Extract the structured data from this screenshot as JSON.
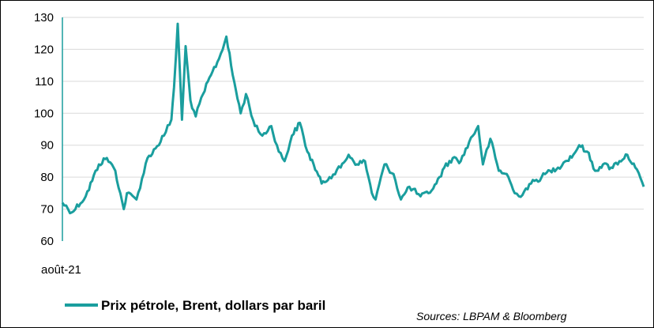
{
  "chart_data": {
    "type": "line",
    "title": "",
    "xlabel": "",
    "ylabel": "",
    "x_tick_labels": [
      "août-21"
    ],
    "y_ticks": [
      60,
      70,
      80,
      90,
      100,
      110,
      120,
      130
    ],
    "ylim": [
      60,
      130
    ],
    "grid": "horizontal",
    "legend_position": "bottom-left",
    "series": [
      {
        "name": "Prix pétrole, Brent, dollars par baril",
        "color": "#1a9e9e",
        "x": [
          "2021-08-02",
          "2021-08-20",
          "2021-09-15",
          "2021-10-10",
          "2021-10-25",
          "2021-11-10",
          "2021-11-26",
          "2021-12-02",
          "2021-12-20",
          "2022-01-10",
          "2022-01-25",
          "2022-02-10",
          "2022-02-24",
          "2022-03-01",
          "2022-03-08",
          "2022-03-16",
          "2022-03-23",
          "2022-04-01",
          "2022-04-11",
          "2022-04-25",
          "2022-05-10",
          "2022-05-25",
          "2022-06-08",
          "2022-06-20",
          "2022-07-05",
          "2022-07-15",
          "2022-08-01",
          "2022-08-15",
          "2022-09-01",
          "2022-09-15",
          "2022-09-26",
          "2022-10-10",
          "2022-10-25",
          "2022-11-08",
          "2022-11-20",
          "2022-12-05",
          "2022-12-20",
          "2023-01-10",
          "2023-01-25",
          "2023-02-10",
          "2023-02-25",
          "2023-03-10",
          "2023-03-17",
          "2023-04-03",
          "2023-04-20",
          "2023-05-04",
          "2023-05-20",
          "2023-06-10",
          "2023-06-25",
          "2023-07-10",
          "2023-07-25",
          "2023-08-10",
          "2023-08-25",
          "2023-09-10",
          "2023-09-27",
          "2023-10-06",
          "2023-10-20",
          "2023-11-05",
          "2023-11-20",
          "2023-12-05",
          "2023-12-13",
          "2024-01-05",
          "2024-01-25",
          "2024-02-10",
          "2024-02-25",
          "2024-03-10",
          "2024-03-25",
          "2024-04-05",
          "2024-04-20",
          "2024-05-05",
          "2024-05-20",
          "2024-06-04",
          "2024-06-20",
          "2024-07-05",
          "2024-07-20",
          "2024-08-05"
        ],
        "values": [
          72,
          69,
          74,
          84,
          86,
          82,
          70,
          75,
          73,
          86,
          89,
          93,
          98,
          108,
          128,
          98,
          121,
          104,
          99,
          106,
          112,
          117,
          124,
          112,
          100,
          106,
          96,
          93,
          96,
          88,
          85,
          93,
          97,
          88,
          84,
          78,
          80,
          83,
          87,
          84,
          85,
          75,
          73,
          84,
          81,
          73,
          77,
          74,
          75,
          78,
          83,
          86,
          85,
          91,
          96,
          84,
          92,
          82,
          81,
          75,
          74,
          78,
          80,
          82,
          83,
          85,
          87,
          90,
          88,
          82,
          84,
          83,
          85,
          87,
          83,
          77
        ]
      }
    ]
  },
  "legend": {
    "label": "Prix pétrole, Brent, dollars par baril",
    "color": "#1a9e9e"
  },
  "source": "Sources: LBPAM & Bloomberg",
  "colors": {
    "grid": "#d9d9d9",
    "line": "#1a9e9e",
    "axis": "#1a9e9e"
  }
}
